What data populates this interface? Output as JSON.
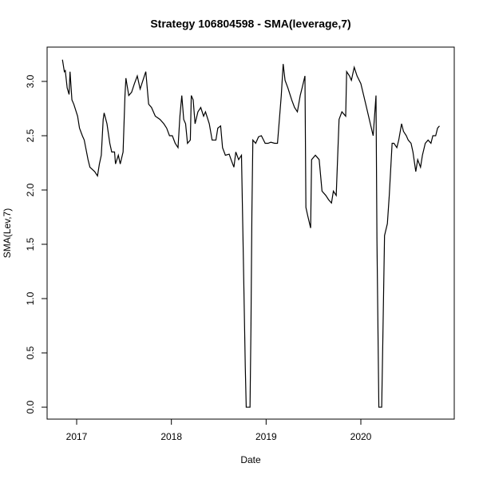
{
  "chart_data": {
    "type": "line",
    "title": "Strategy 106804598 - SMA(leverage,7)",
    "x_label": "Date",
    "y_label": "SMA(Lev,7)",
    "x": [
      2016.85,
      2016.87,
      2016.88,
      2016.9,
      2016.92,
      2016.93,
      2016.95,
      2016.97,
      2017.01,
      2017.03,
      2017.06,
      2017.08,
      2017.12,
      2017.14,
      2017.19,
      2017.22,
      2017.24,
      2017.26,
      2017.28,
      2017.29,
      2017.32,
      2017.35,
      2017.37,
      2017.4,
      2017.41,
      2017.44,
      2017.46,
      2017.49,
      2017.51,
      2017.52,
      2017.55,
      2017.58,
      2017.61,
      2017.64,
      2017.67,
      2017.7,
      2017.73,
      2017.76,
      2017.79,
      2017.83,
      2017.88,
      2017.92,
      2017.95,
      2017.98,
      2018.01,
      2018.04,
      2018.07,
      2018.09,
      2018.11,
      2018.13,
      2018.15,
      2018.17,
      2018.2,
      2018.21,
      2018.23,
      2018.25,
      2018.28,
      2018.31,
      2018.34,
      2018.36,
      2018.4,
      2018.43,
      2018.47,
      2018.49,
      2018.52,
      2018.54,
      2018.57,
      2018.61,
      2018.63,
      2018.66,
      2018.68,
      2018.71,
      2018.74,
      2018.76,
      2018.78,
      2018.79,
      2018.83,
      2018.84,
      2018.85,
      2018.86,
      2018.89,
      2018.92,
      2018.95,
      2018.99,
      2019.02,
      2019.05,
      2019.09,
      2019.12,
      2019.16,
      2019.18,
      2019.2,
      2019.23,
      2019.27,
      2019.3,
      2019.33,
      2019.36,
      2019.38,
      2019.41,
      2019.42,
      2019.44,
      2019.47,
      2019.48,
      2019.52,
      2019.56,
      2019.59,
      2019.63,
      2019.66,
      2019.69,
      2019.71,
      2019.74,
      2019.77,
      2019.8,
      2019.84,
      2019.85,
      2019.88,
      2019.9,
      2019.93,
      2019.96,
      2020.0,
      2020.03,
      2020.06,
      2020.1,
      2020.13,
      2020.16,
      2020.17,
      2020.19,
      2020.22,
      2020.23,
      2020.25,
      2020.28,
      2020.3,
      2020.33,
      2020.35,
      2020.38,
      2020.4,
      2020.43,
      2020.45,
      2020.48,
      2020.5,
      2020.53,
      2020.55,
      2020.58,
      2020.6,
      2020.63,
      2020.65,
      2020.68,
      2020.71,
      2020.74,
      2020.76,
      2020.79,
      2020.81,
      2020.83
    ],
    "series": [
      {
        "name": "SMA(Lev,7)",
        "color": "#000000",
        "values": [
          3.2,
          3.09,
          3.1,
          2.94,
          2.88,
          3.09,
          2.83,
          2.79,
          2.68,
          2.57,
          2.5,
          2.46,
          2.28,
          2.21,
          2.17,
          2.13,
          2.24,
          2.32,
          2.65,
          2.71,
          2.61,
          2.43,
          2.35,
          2.35,
          2.24,
          2.32,
          2.24,
          2.35,
          2.87,
          3.03,
          2.87,
          2.9,
          2.98,
          3.05,
          2.93,
          3.01,
          3.09,
          2.79,
          2.76,
          2.68,
          2.65,
          2.61,
          2.57,
          2.5,
          2.5,
          2.43,
          2.39,
          2.68,
          2.87,
          2.65,
          2.61,
          2.43,
          2.46,
          2.87,
          2.83,
          2.61,
          2.72,
          2.76,
          2.68,
          2.72,
          2.61,
          2.46,
          2.46,
          2.57,
          2.59,
          2.39,
          2.32,
          2.33,
          2.28,
          2.21,
          2.35,
          2.28,
          2.32,
          1.36,
          0.37,
          0,
          0,
          0.74,
          1.8,
          2.46,
          2.43,
          2.49,
          2.5,
          2.43,
          2.43,
          2.44,
          2.43,
          2.43,
          2.87,
          3.16,
          3.01,
          2.94,
          2.83,
          2.76,
          2.72,
          2.87,
          2.94,
          3.05,
          1.84,
          1.76,
          1.65,
          2.28,
          2.32,
          2.28,
          1.99,
          1.95,
          1.91,
          1.88,
          1.99,
          1.95,
          2.65,
          2.72,
          2.68,
          3.09,
          3.05,
          3.01,
          3.13,
          3.05,
          2.98,
          2.87,
          2.76,
          2.61,
          2.5,
          2.87,
          1.54,
          0,
          0,
          0.51,
          1.58,
          1.69,
          1.95,
          2.43,
          2.43,
          2.39,
          2.46,
          2.61,
          2.54,
          2.5,
          2.46,
          2.43,
          2.35,
          2.17,
          2.28,
          2.21,
          2.32,
          2.43,
          2.46,
          2.43,
          2.5,
          2.5,
          2.57,
          2.59
        ]
      }
    ],
    "xlim": [
      2016.688,
      2020.986
    ],
    "xticks": [
      2017,
      2018,
      2019,
      2020
    ],
    "ylim": [
      -0.11,
      3.316
    ],
    "yticks": [
      {
        "value": 0,
        "label": "0.0"
      },
      0.5,
      {
        "value": 1,
        "label": "1.0"
      },
      1.5,
      {
        "value": 2,
        "label": "2.0"
      },
      2.5,
      {
        "value": 3,
        "label": "3.0"
      }
    ],
    "grid": false
  }
}
